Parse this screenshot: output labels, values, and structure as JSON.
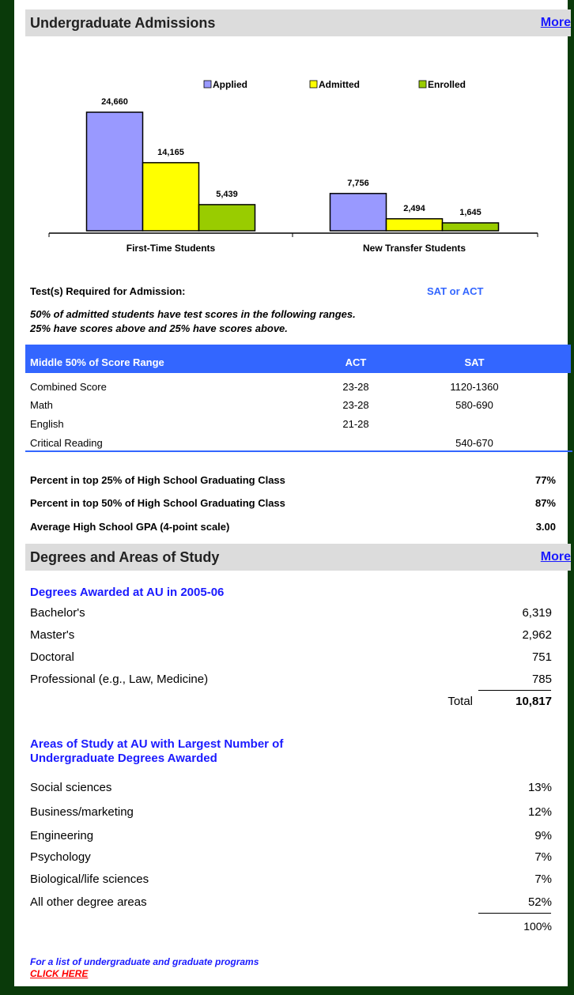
{
  "admissions": {
    "title": "Undergraduate Admissions",
    "more": "More"
  },
  "chart_data": {
    "type": "bar",
    "categories": [
      "First-Time Students",
      "New Transfer Students"
    ],
    "series": [
      {
        "name": "Applied",
        "color": "#9999ff",
        "values": [
          24660,
          7756
        ],
        "value_labels": [
          "24,660",
          "7,756"
        ]
      },
      {
        "name": "Admitted",
        "color": "#ffff00",
        "values": [
          14165,
          2494
        ],
        "value_labels": [
          "14,165",
          "2,494"
        ]
      },
      {
        "name": "Enrolled",
        "color": "#99cc00",
        "values": [
          5439,
          1645
        ],
        "value_labels": [
          "5,439",
          "1,645"
        ]
      }
    ]
  },
  "tests": {
    "label": "Test(s) Required for Admission:",
    "value": "SAT or ACT",
    "note": [
      "50% of admitted students have test scores in the following ranges.",
      "25% have scores above and 25% have scores above."
    ]
  },
  "scores": {
    "header": [
      "Middle 50% of Score Range",
      "ACT",
      "SAT"
    ],
    "rows": [
      {
        "label": "Combined Score",
        "act": "23-28",
        "sat": "1120-1360"
      },
      {
        "label": "Math",
        "act": "23-28",
        "sat": "580-690"
      },
      {
        "label": "English",
        "act": "21-28"
      },
      {
        "label": "Critical Reading",
        "sat": "540-670"
      }
    ]
  },
  "stats": [
    {
      "label": "Percent in top 25% of High School Graduating Class",
      "value": "77%"
    },
    {
      "label": "Percent in top 50% of High School Graduating Class",
      "value": "87%"
    },
    {
      "label": "Average High School GPA (4-point scale)",
      "value": "3.00"
    }
  ],
  "degrees": {
    "title": "Degrees and Areas of Study",
    "more": "More",
    "awarded_title": "Degrees Awarded at AU in 2005-06",
    "awarded": [
      {
        "label": "Bachelor's",
        "value": "6,319"
      },
      {
        "label": "Master's",
        "value": "2,962"
      },
      {
        "label": "Doctoral",
        "value": "751"
      },
      {
        "label": "Professional (e.g., Law, Medicine)",
        "value": "785"
      }
    ],
    "total_label": "Total",
    "total": "10,817",
    "areas_title": [
      "Areas of Study at AU with Largest Number of",
      "Undergraduate Degrees Awarded"
    ],
    "areas": [
      {
        "label": "Social sciences",
        "value": "13%"
      },
      {
        "label": "Business/marketing",
        "value": "12%"
      },
      {
        "label": "Engineering",
        "value": "9%"
      },
      {
        "label": "Psychology",
        "value": "7%"
      },
      {
        "label": "Biological/life sciences",
        "value": "7%"
      },
      {
        "label": "All other degree areas",
        "value": "52%"
      }
    ],
    "areas_total": "100%"
  },
  "footer": {
    "text": "For a list of undergraduate and graduate programs",
    "link": "CLICK HERE"
  }
}
